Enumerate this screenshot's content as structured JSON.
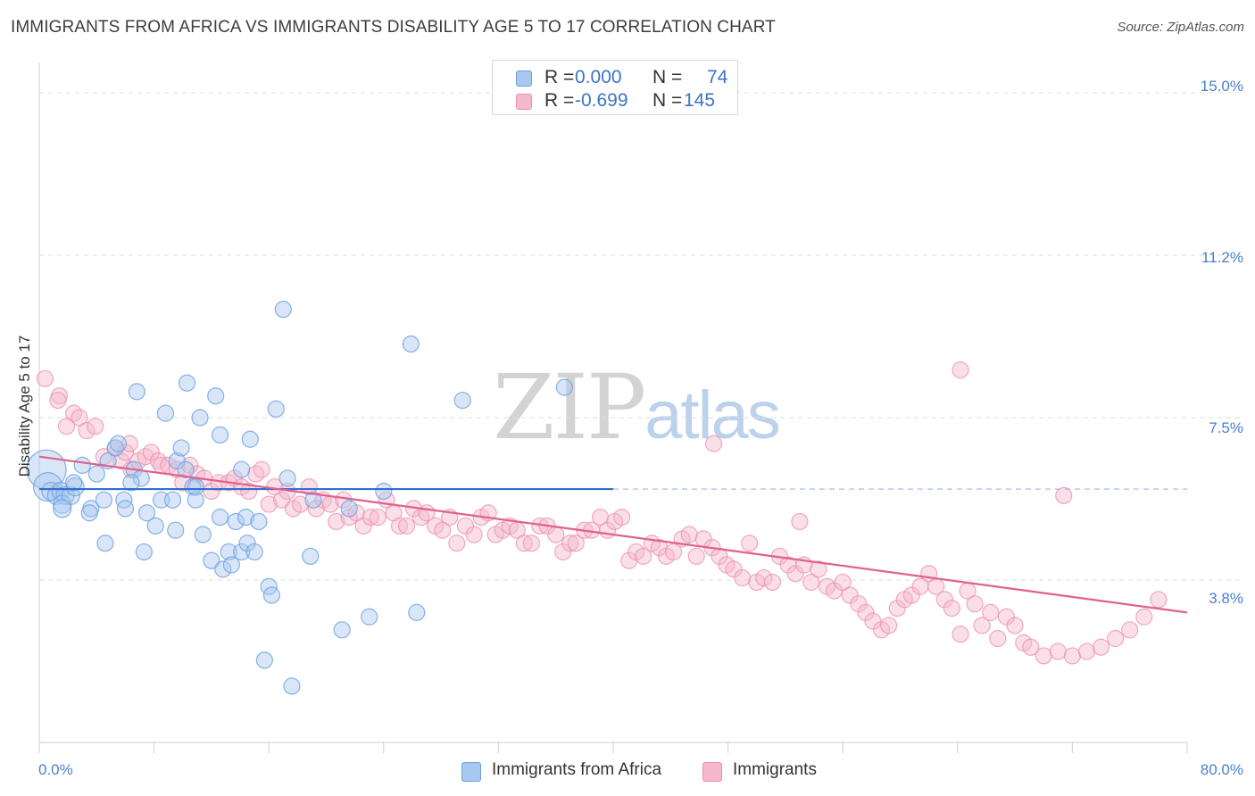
{
  "header": {
    "title": "IMMIGRANTS FROM AFRICA VS IMMIGRANTS DISABILITY AGE 5 TO 17 CORRELATION CHART",
    "source": "Source: ZipAtlas.com"
  },
  "watermark": {
    "zip": "ZIP",
    "atlas": "atlas"
  },
  "legend_top": [
    {
      "r_label": "R =",
      "r_value": "0.000",
      "n_label": "N =",
      "n_value": "74"
    },
    {
      "r_label": "R =",
      "r_value": "-0.699",
      "n_label": "N =",
      "n_value": "145"
    }
  ],
  "legend_bottom": [
    "Immigrants from Africa",
    "Immigrants"
  ],
  "axes": {
    "ylabel": "Disability Age 5 to 17",
    "yticks": [
      "15.0%",
      "11.2%",
      "7.5%",
      "3.8%"
    ],
    "xticks": [
      "0.0%",
      "80.0%"
    ]
  },
  "colors": {
    "africa_fill": "#a9c8f0",
    "africa_stroke": "#6d9fe0",
    "africa_line": "#2f6fd0",
    "imm_fill": "#f5b8cc",
    "imm_stroke": "#ec8fad",
    "imm_line": "#e0608e",
    "grid": "#dedede",
    "tick_text": "#4a7fd0"
  },
  "chart_data": {
    "type": "scatter",
    "xlim": [
      0,
      80
    ],
    "ylim": [
      0,
      15.7
    ],
    "ytick_values": [
      15.0,
      11.25,
      7.5,
      3.75
    ],
    "series": [
      {
        "name": "Immigrants from Africa",
        "r": 0.0,
        "n": 74,
        "trend": {
          "x": [
            0,
            40
          ],
          "y": [
            5.85,
            5.85
          ],
          "dashed_to": 80
        },
        "points": [
          [
            0.5,
            6.3,
            22
          ],
          [
            0.6,
            5.9,
            16
          ],
          [
            0.8,
            5.8,
            10
          ],
          [
            1.2,
            5.7,
            10
          ],
          [
            1.5,
            5.8,
            10
          ],
          [
            1.8,
            5.7,
            10
          ],
          [
            1.6,
            5.5,
            10
          ],
          [
            2.2,
            5.7,
            10
          ],
          [
            2.5,
            5.9,
            10
          ],
          [
            1.6,
            5.4,
            10
          ],
          [
            3.0,
            6.4,
            9
          ],
          [
            2.4,
            6.0,
            9
          ],
          [
            3.6,
            5.4,
            9
          ],
          [
            4.5,
            5.6,
            9
          ],
          [
            3.5,
            5.3,
            9
          ],
          [
            4.0,
            6.2,
            9
          ],
          [
            4.8,
            6.5,
            9
          ],
          [
            5.3,
            6.8,
            9
          ],
          [
            5.5,
            6.9,
            9
          ],
          [
            6.6,
            6.3,
            9
          ],
          [
            5.9,
            5.6,
            9
          ],
          [
            7.1,
            6.1,
            9
          ],
          [
            6.0,
            5.4,
            9
          ],
          [
            6.4,
            6.0,
            9
          ],
          [
            7.5,
            5.3,
            9
          ],
          [
            8.5,
            5.6,
            9
          ],
          [
            9.3,
            5.6,
            9
          ],
          [
            9.6,
            6.5,
            9
          ],
          [
            9.9,
            6.8,
            9
          ],
          [
            10.2,
            6.3,
            9
          ],
          [
            10.7,
            5.9,
            9
          ],
          [
            10.9,
            5.6,
            9
          ],
          [
            8.1,
            5.0,
            9
          ],
          [
            9.5,
            4.9,
            9
          ],
          [
            11.4,
            4.8,
            9
          ],
          [
            12.6,
            5.2,
            9
          ],
          [
            13.7,
            5.1,
            9
          ],
          [
            14.4,
            5.2,
            9
          ],
          [
            15.3,
            5.1,
            9
          ],
          [
            13.2,
            4.4,
            9
          ],
          [
            14.1,
            4.4,
            9
          ],
          [
            14.5,
            4.6,
            9
          ],
          [
            15.0,
            4.4,
            9
          ],
          [
            12.0,
            4.2,
            9
          ],
          [
            12.8,
            4.0,
            9
          ],
          [
            13.4,
            4.1,
            9
          ],
          [
            7.3,
            4.4,
            9
          ],
          [
            4.6,
            4.6,
            9
          ],
          [
            8.8,
            7.6,
            9
          ],
          [
            6.8,
            8.1,
            9
          ],
          [
            10.3,
            8.3,
            9
          ],
          [
            11.2,
            7.5,
            9
          ],
          [
            12.3,
            8.0,
            9
          ],
          [
            12.6,
            7.1,
            9
          ],
          [
            14.1,
            6.3,
            9
          ],
          [
            14.7,
            7.0,
            9
          ],
          [
            16.5,
            7.7,
            9
          ],
          [
            17.3,
            6.1,
            9
          ],
          [
            17.0,
            10.0,
            9
          ],
          [
            25.9,
            9.2,
            9
          ],
          [
            29.5,
            7.9,
            9
          ],
          [
            36.6,
            8.2,
            9
          ],
          [
            16.0,
            3.6,
            9
          ],
          [
            16.2,
            3.4,
            9
          ],
          [
            18.9,
            4.3,
            9
          ],
          [
            21.1,
            2.6,
            9
          ],
          [
            23.0,
            2.9,
            9
          ],
          [
            26.3,
            3.0,
            9
          ],
          [
            15.7,
            1.9,
            9
          ],
          [
            17.6,
            1.3,
            9
          ],
          [
            10.9,
            5.9,
            9
          ],
          [
            19.1,
            5.6,
            9
          ],
          [
            21.6,
            5.4,
            9
          ],
          [
            24.0,
            5.8,
            9
          ]
        ]
      },
      {
        "name": "Immigrants",
        "r": -0.699,
        "n": 145,
        "trend": {
          "x": [
            0,
            80
          ],
          "y": [
            6.6,
            3.0
          ]
        },
        "points": [
          [
            0.4,
            8.4
          ],
          [
            1.4,
            8.0
          ],
          [
            1.3,
            7.9
          ],
          [
            1.9,
            7.3
          ],
          [
            2.4,
            7.6
          ],
          [
            2.8,
            7.5
          ],
          [
            3.3,
            7.2
          ],
          [
            3.9,
            7.3
          ],
          [
            4.5,
            6.6
          ],
          [
            5.3,
            6.8
          ],
          [
            5.7,
            6.5
          ],
          [
            6.0,
            6.7
          ],
          [
            6.3,
            6.9
          ],
          [
            6.4,
            6.3
          ],
          [
            6.9,
            6.5
          ],
          [
            7.4,
            6.6
          ],
          [
            7.8,
            6.7
          ],
          [
            8.3,
            6.5
          ],
          [
            8.5,
            6.4
          ],
          [
            9.0,
            6.4
          ],
          [
            9.6,
            6.3
          ],
          [
            10.0,
            6.0
          ],
          [
            10.5,
            6.4
          ],
          [
            11.0,
            6.2
          ],
          [
            11.5,
            6.1
          ],
          [
            12.0,
            5.8
          ],
          [
            12.5,
            6.0
          ],
          [
            13.2,
            6.0
          ],
          [
            13.6,
            6.1
          ],
          [
            14.1,
            5.9
          ],
          [
            14.6,
            5.8
          ],
          [
            15.1,
            6.2
          ],
          [
            15.5,
            6.3
          ],
          [
            16.0,
            5.5
          ],
          [
            16.4,
            5.9
          ],
          [
            16.9,
            5.6
          ],
          [
            17.3,
            5.8
          ],
          [
            17.7,
            5.4
          ],
          [
            18.2,
            5.5
          ],
          [
            18.8,
            5.9
          ],
          [
            19.3,
            5.4
          ],
          [
            19.8,
            5.6
          ],
          [
            20.3,
            5.5
          ],
          [
            20.7,
            5.1
          ],
          [
            21.2,
            5.6
          ],
          [
            21.6,
            5.2
          ],
          [
            22.1,
            5.3
          ],
          [
            22.6,
            5.0
          ],
          [
            23.1,
            5.2
          ],
          [
            23.6,
            5.2
          ],
          [
            24.2,
            5.6
          ],
          [
            24.7,
            5.3
          ],
          [
            25.1,
            5.0
          ],
          [
            25.6,
            5.0
          ],
          [
            26.1,
            5.4
          ],
          [
            26.6,
            5.2
          ],
          [
            27.0,
            5.3
          ],
          [
            27.6,
            5.0
          ],
          [
            28.1,
            4.9
          ],
          [
            28.6,
            5.2
          ],
          [
            29.1,
            4.6
          ],
          [
            29.7,
            5.0
          ],
          [
            30.3,
            4.8
          ],
          [
            30.8,
            5.2
          ],
          [
            31.3,
            5.3
          ],
          [
            31.8,
            4.8
          ],
          [
            32.3,
            4.9
          ],
          [
            32.8,
            5.0
          ],
          [
            33.3,
            4.9
          ],
          [
            33.8,
            4.6
          ],
          [
            34.3,
            4.6
          ],
          [
            34.9,
            5.0
          ],
          [
            35.4,
            5.0
          ],
          [
            36.0,
            4.8
          ],
          [
            36.5,
            4.4
          ],
          [
            37.0,
            4.6
          ],
          [
            37.4,
            4.6
          ],
          [
            38.0,
            4.9
          ],
          [
            38.5,
            4.9
          ],
          [
            39.1,
            5.2
          ],
          [
            39.6,
            4.9
          ],
          [
            40.1,
            5.1
          ],
          [
            40.6,
            5.2
          ],
          [
            41.1,
            4.2
          ],
          [
            41.6,
            4.4
          ],
          [
            42.1,
            4.3
          ],
          [
            42.7,
            4.6
          ],
          [
            43.2,
            4.5
          ],
          [
            43.7,
            4.3
          ],
          [
            44.2,
            4.4
          ],
          [
            44.8,
            4.7
          ],
          [
            45.3,
            4.8
          ],
          [
            45.8,
            4.3
          ],
          [
            46.3,
            4.7
          ],
          [
            46.9,
            4.5
          ],
          [
            47.4,
            4.3
          ],
          [
            47.9,
            4.1
          ],
          [
            48.4,
            4.0
          ],
          [
            49.0,
            3.8
          ],
          [
            49.5,
            4.6
          ],
          [
            50.0,
            3.7
          ],
          [
            50.5,
            3.8
          ],
          [
            51.1,
            3.7
          ],
          [
            51.6,
            4.3
          ],
          [
            52.2,
            4.1
          ],
          [
            52.7,
            3.9
          ],
          [
            53.3,
            4.1
          ],
          [
            53.8,
            3.7
          ],
          [
            54.3,
            4.0
          ],
          [
            54.9,
            3.6
          ],
          [
            55.4,
            3.5
          ],
          [
            56.0,
            3.7
          ],
          [
            56.5,
            3.4
          ],
          [
            57.1,
            3.2
          ],
          [
            57.6,
            3.0
          ],
          [
            58.1,
            2.8
          ],
          [
            58.7,
            2.6
          ],
          [
            59.2,
            2.7
          ],
          [
            59.8,
            3.1
          ],
          [
            60.3,
            3.3
          ],
          [
            60.8,
            3.4
          ],
          [
            61.4,
            3.6
          ],
          [
            62.0,
            3.9
          ],
          [
            62.5,
            3.6
          ],
          [
            63.1,
            3.3
          ],
          [
            63.6,
            3.1
          ],
          [
            64.2,
            2.5
          ],
          [
            64.7,
            3.5
          ],
          [
            65.2,
            3.2
          ],
          [
            65.7,
            2.7
          ],
          [
            66.3,
            3.0
          ],
          [
            66.8,
            2.4
          ],
          [
            67.4,
            2.9
          ],
          [
            68.0,
            2.7
          ],
          [
            68.6,
            2.3
          ],
          [
            69.1,
            2.2
          ],
          [
            70.0,
            2.0
          ],
          [
            71.0,
            2.1
          ],
          [
            72.0,
            2.0
          ],
          [
            73.0,
            2.1
          ],
          [
            74.0,
            2.2
          ],
          [
            75.0,
            2.4
          ],
          [
            76.0,
            2.6
          ],
          [
            77.0,
            2.9
          ],
          [
            78.0,
            3.3
          ],
          [
            47.0,
            6.9
          ],
          [
            53.0,
            5.1
          ],
          [
            64.2,
            8.6
          ],
          [
            71.4,
            5.7
          ]
        ]
      }
    ]
  }
}
